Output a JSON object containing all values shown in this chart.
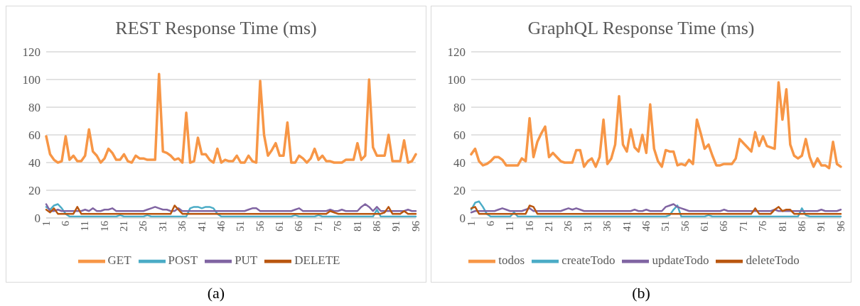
{
  "chart_data": [
    {
      "type": "line",
      "title": "REST Response Time (ms)",
      "categories": [
        "1",
        null,
        null,
        null,
        null,
        "6",
        null,
        null,
        null,
        null,
        "11",
        null,
        null,
        null,
        null,
        "16",
        null,
        null,
        null,
        null,
        "21",
        null,
        null,
        null,
        null,
        "26",
        null,
        null,
        null,
        null,
        "31",
        null,
        null,
        null,
        null,
        "36",
        null,
        null,
        null,
        null,
        "41",
        null,
        null,
        null,
        null,
        "46",
        null,
        null,
        null,
        null,
        "51",
        null,
        null,
        null,
        null,
        "56",
        null,
        null,
        null,
        null,
        "61",
        null,
        null,
        null,
        null,
        "66",
        null,
        null,
        null,
        null,
        "71",
        null,
        null,
        null,
        null,
        "76",
        null,
        null,
        null,
        null,
        "81",
        null,
        null,
        null,
        null,
        "86",
        null,
        null,
        null,
        null,
        "91",
        null,
        null,
        null,
        null,
        "96"
      ],
      "series": [
        {
          "name": "GET",
          "color": "#f79646",
          "values": [
            59,
            46,
            42,
            40,
            41,
            59,
            42,
            45,
            41,
            41,
            45,
            64,
            48,
            45,
            40,
            43,
            50,
            47,
            42,
            42,
            46,
            41,
            40,
            45,
            43,
            43,
            42,
            42,
            42,
            104,
            48,
            47,
            45,
            42,
            43,
            40,
            76,
            40,
            41,
            58,
            46,
            46,
            42,
            40,
            50,
            40,
            42,
            41,
            41,
            45,
            40,
            40,
            45,
            41,
            40,
            99,
            60,
            45,
            49,
            54,
            45,
            45,
            69,
            40,
            40,
            45,
            43,
            40,
            43,
            50,
            42,
            45,
            41,
            41,
            40,
            40,
            40,
            42,
            42,
            42,
            54,
            42,
            45,
            100,
            51,
            45,
            45,
            45,
            60,
            41,
            41,
            41,
            56,
            40,
            41,
            46
          ]
        },
        {
          "name": "POST",
          "color": "#4bacc6",
          "values": [
            8,
            6,
            9,
            10,
            7,
            3,
            1,
            1,
            1,
            1,
            1,
            1,
            1,
            1,
            1,
            1,
            1,
            1,
            1,
            2,
            1,
            1,
            1,
            1,
            1,
            1,
            2,
            1,
            1,
            1,
            1,
            1,
            1,
            1,
            1,
            1,
            1,
            7,
            8,
            8,
            7,
            8,
            8,
            7,
            3,
            1,
            1,
            1,
            1,
            1,
            1,
            1,
            1,
            1,
            1,
            1,
            1,
            1,
            1,
            1,
            1,
            1,
            1,
            1,
            2,
            1,
            1,
            1,
            1,
            1,
            2,
            1,
            1,
            1,
            1,
            1,
            1,
            1,
            1,
            1,
            1,
            1,
            1,
            1,
            1,
            6,
            1,
            1,
            1,
            1,
            1,
            1,
            1,
            1,
            1,
            1
          ]
        },
        {
          "name": "PUT",
          "color": "#8064a2",
          "values": [
            10,
            5,
            5,
            6,
            5,
            5,
            5,
            5,
            5,
            5,
            6,
            5,
            7,
            5,
            5,
            6,
            6,
            7,
            5,
            5,
            5,
            5,
            5,
            5,
            5,
            5,
            6,
            7,
            8,
            7,
            6,
            6,
            5,
            5,
            7,
            5,
            5,
            5,
            5,
            5,
            5,
            5,
            5,
            5,
            5,
            5,
            5,
            5,
            5,
            5,
            5,
            5,
            6,
            7,
            7,
            5,
            5,
            5,
            5,
            5,
            5,
            5,
            5,
            5,
            6,
            7,
            5,
            5,
            5,
            5,
            5,
            5,
            5,
            6,
            5,
            5,
            6,
            5,
            5,
            5,
            5,
            8,
            10,
            8,
            5,
            8,
            5,
            5,
            5,
            5,
            5,
            5,
            5,
            6,
            5,
            5
          ]
        },
        {
          "name": "DELETE",
          "color": "#b9560f",
          "values": [
            6,
            4,
            7,
            3,
            3,
            3,
            3,
            3,
            8,
            3,
            3,
            3,
            3,
            3,
            3,
            3,
            3,
            3,
            3,
            3,
            3,
            3,
            3,
            3,
            3,
            3,
            3,
            3,
            3,
            3,
            3,
            3,
            3,
            9,
            6,
            3,
            3,
            3,
            3,
            3,
            3,
            3,
            3,
            3,
            3,
            3,
            3,
            3,
            3,
            3,
            3,
            3,
            3,
            3,
            3,
            3,
            3,
            3,
            3,
            3,
            3,
            3,
            3,
            3,
            3,
            3,
            3,
            3,
            3,
            3,
            3,
            3,
            3,
            5,
            4,
            3,
            3,
            3,
            3,
            3,
            3,
            3,
            3,
            3,
            3,
            3,
            3,
            4,
            8,
            3,
            3,
            3,
            5,
            3,
            3,
            3
          ]
        }
      ],
      "ylim": [
        0,
        120
      ],
      "yticks": [
        0,
        20,
        40,
        60,
        80,
        100,
        120
      ],
      "grid": "y",
      "legend": "bottom",
      "annotations": [
        "(a)"
      ]
    },
    {
      "type": "line",
      "title": "GraphQL Response Time (ms)",
      "categories": [
        "1",
        null,
        null,
        null,
        null,
        "6",
        null,
        null,
        null,
        null,
        "11",
        null,
        null,
        null,
        null,
        "16",
        null,
        null,
        null,
        null,
        "21",
        null,
        null,
        null,
        null,
        "26",
        null,
        null,
        null,
        null,
        "31",
        null,
        null,
        null,
        null,
        "36",
        null,
        null,
        null,
        null,
        "41",
        null,
        null,
        null,
        null,
        "46",
        null,
        null,
        null,
        null,
        "51",
        null,
        null,
        null,
        null,
        "56",
        null,
        null,
        null,
        null,
        "61",
        null,
        null,
        null,
        null,
        "66",
        null,
        null,
        null,
        null,
        "71",
        null,
        null,
        null,
        null,
        "76",
        null,
        null,
        null,
        null,
        "81",
        null,
        null,
        null,
        null,
        "86",
        null,
        null,
        null,
        null,
        "91",
        null,
        null,
        null,
        null,
        "96"
      ],
      "series": [
        {
          "name": "todos",
          "color": "#f79646",
          "values": [
            46,
            50,
            41,
            38,
            39,
            41,
            44,
            44,
            42,
            38,
            38,
            38,
            38,
            43,
            41,
            72,
            44,
            55,
            61,
            66,
            44,
            47,
            44,
            41,
            40,
            40,
            40,
            49,
            49,
            37,
            41,
            43,
            37,
            44,
            71,
            39,
            43,
            53,
            88,
            53,
            48,
            64,
            51,
            48,
            60,
            47,
            82,
            50,
            41,
            37,
            49,
            48,
            48,
            38,
            39,
            38,
            42,
            39,
            71,
            61,
            50,
            53,
            45,
            38,
            38,
            39,
            39,
            39,
            43,
            57,
            54,
            51,
            48,
            62,
            52,
            59,
            52,
            51,
            50,
            98,
            71,
            93,
            53,
            45,
            43,
            45,
            57,
            44,
            37,
            43,
            38,
            38,
            36,
            55,
            39,
            37
          ]
        },
        {
          "name": "createTodo",
          "color": "#4bacc6",
          "values": [
            6,
            11,
            12,
            8,
            3,
            1,
            1,
            1,
            1,
            1,
            1,
            4,
            1,
            1,
            1,
            1,
            1,
            1,
            1,
            1,
            1,
            1,
            1,
            1,
            1,
            1,
            1,
            1,
            1,
            1,
            1,
            1,
            1,
            1,
            1,
            1,
            1,
            1,
            1,
            1,
            1,
            1,
            1,
            1,
            1,
            1,
            1,
            1,
            1,
            1,
            1,
            2,
            6,
            9,
            1,
            1,
            1,
            1,
            1,
            1,
            1,
            2,
            1,
            1,
            1,
            1,
            1,
            1,
            1,
            1,
            1,
            1,
            1,
            1,
            1,
            1,
            1,
            1,
            1,
            1,
            1,
            1,
            1,
            1,
            1,
            7,
            2,
            1,
            1,
            1,
            1,
            1,
            1,
            1,
            1,
            1
          ]
        },
        {
          "name": "updateTodo",
          "color": "#8064a2",
          "values": [
            4,
            5,
            5,
            5,
            5,
            5,
            5,
            6,
            7,
            6,
            5,
            5,
            5,
            5,
            6,
            7,
            5,
            5,
            5,
            5,
            5,
            5,
            5,
            5,
            6,
            7,
            6,
            7,
            6,
            5,
            5,
            5,
            5,
            5,
            5,
            5,
            5,
            5,
            5,
            5,
            5,
            5,
            6,
            5,
            5,
            6,
            5,
            5,
            5,
            5,
            8,
            9,
            10,
            8,
            7,
            6,
            5,
            5,
            5,
            5,
            5,
            5,
            5,
            5,
            5,
            6,
            5,
            5,
            5,
            5,
            5,
            5,
            5,
            5,
            5,
            5,
            5,
            5,
            6,
            5,
            5,
            5,
            5,
            5,
            5,
            5,
            5,
            5,
            5,
            5,
            6,
            5,
            5,
            5,
            5,
            6
          ]
        },
        {
          "name": "deleteTodo",
          "color": "#b9560f",
          "values": [
            7,
            8,
            3,
            3,
            3,
            3,
            3,
            3,
            3,
            3,
            3,
            3,
            3,
            3,
            3,
            9,
            8,
            3,
            3,
            3,
            3,
            3,
            3,
            3,
            3,
            3,
            3,
            3,
            3,
            3,
            3,
            3,
            3,
            3,
            3,
            3,
            3,
            3,
            3,
            3,
            3,
            3,
            3,
            3,
            3,
            3,
            3,
            3,
            3,
            3,
            3,
            3,
            3,
            3,
            3,
            3,
            3,
            3,
            3,
            3,
            3,
            3,
            3,
            3,
            3,
            3,
            3,
            3,
            3,
            3,
            3,
            3,
            3,
            7,
            3,
            3,
            3,
            3,
            6,
            8,
            5,
            6,
            6,
            3,
            3,
            3,
            3,
            3,
            3,
            3,
            3,
            3,
            3,
            3,
            3,
            3
          ]
        }
      ],
      "ylim": [
        0,
        120
      ],
      "yticks": [
        0,
        20,
        40,
        60,
        80,
        100,
        120
      ],
      "grid": "y",
      "legend": "bottom",
      "annotations": [
        "(b)"
      ]
    }
  ]
}
